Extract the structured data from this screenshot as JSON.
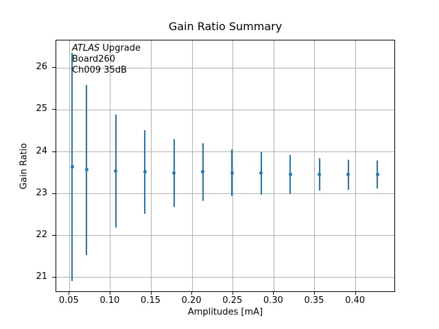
{
  "chart_data": {
    "type": "scatter",
    "subtype": "errorbar",
    "title": "Gain Ratio Summary",
    "xlabel": "Amplitudes [mA]",
    "ylabel": "Gain Ratio",
    "annotation": {
      "experiment": "ATLAS",
      "line1_rest": "Upgrade",
      "line2": "Board260",
      "line3": "Ch009 35dB"
    },
    "x": [
      0.0533,
      0.0711,
      0.1067,
      0.1422,
      0.1778,
      0.2133,
      0.2489,
      0.2844,
      0.32,
      0.3556,
      0.3911,
      0.4267
    ],
    "y": [
      23.64,
      23.57,
      23.55,
      23.52,
      23.49,
      23.52,
      23.5,
      23.49,
      23.46,
      23.46,
      23.46,
      23.46
    ],
    "yerr": [
      2.73,
      2.03,
      1.35,
      1.0,
      0.81,
      0.68,
      0.56,
      0.51,
      0.46,
      0.39,
      0.36,
      0.33
    ],
    "xticks": [
      0.05,
      0.1,
      0.15,
      0.2,
      0.25,
      0.3,
      0.35,
      0.4
    ],
    "xtick_labels": [
      "0.05",
      "0.10",
      "0.15",
      "0.20",
      "0.25",
      "0.30",
      "0.35",
      "0.40"
    ],
    "yticks": [
      21,
      22,
      23,
      24,
      25,
      26
    ],
    "ytick_labels": [
      "21",
      "22",
      "23",
      "24",
      "25",
      "26"
    ],
    "xlim": [
      0.0338,
      0.449
    ],
    "ylim": [
      20.64,
      26.66
    ],
    "grid": true,
    "legend": null,
    "marker": "point",
    "colors": {
      "series": "#1f77b4",
      "grid": "#b0b0b0",
      "spine": "#000000",
      "text": "#000000",
      "background": "#ffffff"
    }
  }
}
